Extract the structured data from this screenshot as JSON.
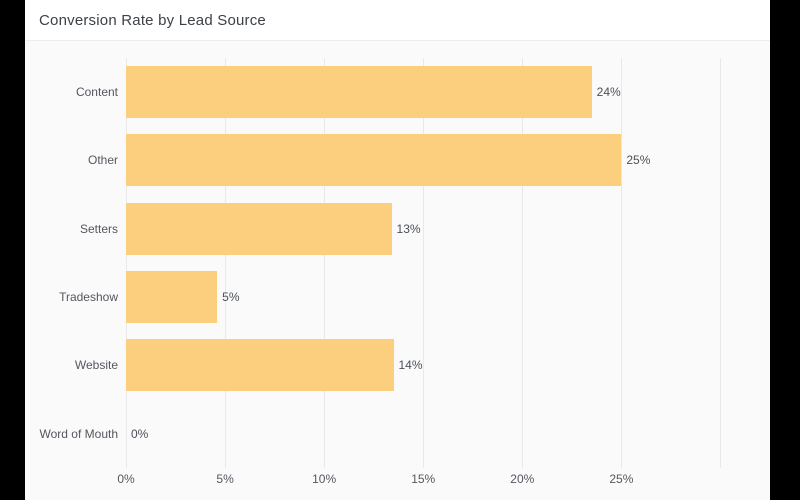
{
  "window": {
    "title": "Conversion Rate by Lead Source"
  },
  "chart_data": {
    "type": "bar",
    "orientation": "horizontal",
    "title": "Conversion Rate by Lead Source",
    "categories": [
      "Content",
      "Other",
      "Setters",
      "Tradeshow",
      "Website",
      "Word of Mouth"
    ],
    "values": [
      23.5,
      25.0,
      13.4,
      4.6,
      13.5,
      0
    ],
    "value_labels": [
      "24%",
      "25%",
      "13%",
      "5%",
      "14%",
      "0%"
    ],
    "x_ticks": [
      {
        "value": 0,
        "label": "0%"
      },
      {
        "value": 5,
        "label": "5%"
      },
      {
        "value": 10,
        "label": "10%"
      },
      {
        "value": 15,
        "label": "15%"
      },
      {
        "value": 20,
        "label": "20%"
      },
      {
        "value": 25,
        "label": "25%"
      }
    ],
    "gridline_values": [
      0,
      5,
      10,
      15,
      20,
      25,
      30
    ],
    "xlim": [
      0,
      32.5
    ],
    "grid": true,
    "legend": false,
    "colors": {
      "bar": "#FCCF7E",
      "card_background": "#FAFAFA",
      "header_background": "#FFFFFF",
      "gridline": "#E9E9E9",
      "title_text": "#3C4148",
      "label_text": "#54575F",
      "value_text": "#4B5058",
      "frame": "#000000"
    }
  }
}
